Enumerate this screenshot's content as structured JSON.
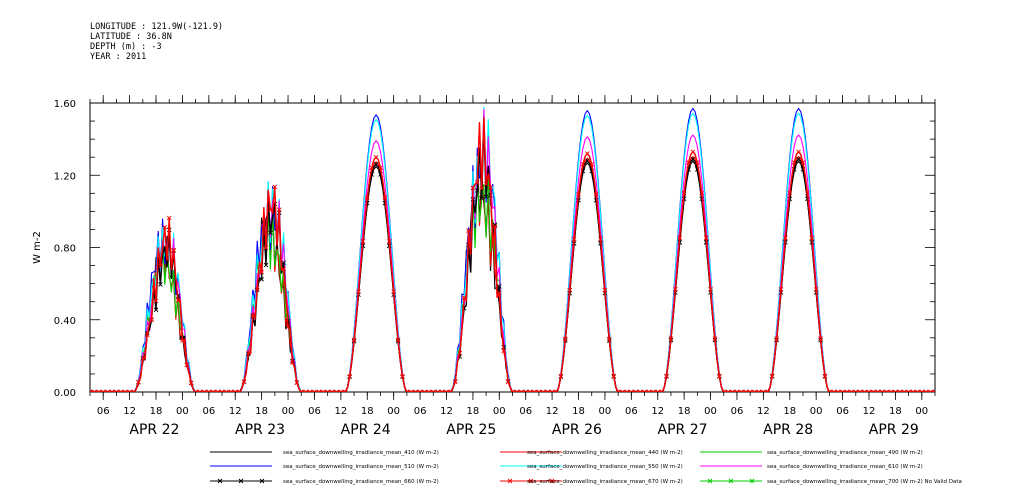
{
  "meta": {
    "longitude": "LONGITUDE : 121.9W(-121.9)",
    "latitude": "LATITUDE : 36.8N",
    "depth": "DEPTH (m) : -3",
    "year": "YEAR : 2011"
  },
  "chart_data": {
    "type": "line",
    "title": "",
    "ylabel": "W m-2",
    "ylim": [
      0,
      1.6
    ],
    "yticks": [
      "0.00",
      "0.40",
      "0.80",
      "1.20",
      "1.60"
    ],
    "x_range_days": [
      "APR 21 03:00",
      "APR 29 03:00"
    ],
    "x_hour_ticks": [
      "06",
      "12",
      "18",
      "00"
    ],
    "day_labels": [
      "APR 22",
      "APR 23",
      "APR 24",
      "APR 25",
      "APR 26",
      "APR 27",
      "APR 28",
      "APR 29"
    ],
    "daily_peak_810": [
      0.78,
      0.95,
      1.3,
      1.2,
      1.32,
      1.33,
      1.33
    ],
    "daily_peak_510": [
      0.98,
      1.22,
      1.56,
      1.3,
      1.58,
      1.58,
      1.58
    ],
    "sunrise_hour": 13,
    "sunset_hour": 27,
    "series": [
      {
        "name": "sea_surface_downwelling_irradiance_mean_410 (W m-2)",
        "color": "#000000",
        "marker": "",
        "factor": 0.96
      },
      {
        "name": "sea_surface_downwelling_irradiance_mean_440 (W m-2)",
        "color": "#ff0000",
        "marker": "",
        "factor": 0.98
      },
      {
        "name": "sea_surface_downwelling_irradiance_mean_490 (W m-2)",
        "color": "#00cc00",
        "marker": "",
        "factor": 1.0
      },
      {
        "name": "sea_surface_downwelling_irradiance_mean_510 (W m-2)",
        "color": "#0000ff",
        "marker": "",
        "factor": 1.18
      },
      {
        "name": "sea_surface_downwelling_irradiance_mean_550 (W m-2)",
        "color": "#00ffff",
        "marker": "",
        "factor": 1.16
      },
      {
        "name": "sea_surface_downwelling_irradiance_mean_610 (W m-2)",
        "color": "#ff00ff",
        "marker": "",
        "factor": 1.07
      },
      {
        "name": "sea_surface_downwelling_irradiance_mean_660 (W m-2)",
        "color": "#000000",
        "marker": "x",
        "factor": 0.97
      },
      {
        "name": "sea_surface_downwelling_irradiance_mean_670 (W m-2)",
        "color": "#ff0000",
        "marker": "x",
        "factor": 1.0
      },
      {
        "name": "sea_surface_downwelling_irradiance_mean_700 (W m-2) No Valid Data",
        "color": "#00cc00",
        "marker": "x",
        "factor": 0
      }
    ]
  }
}
